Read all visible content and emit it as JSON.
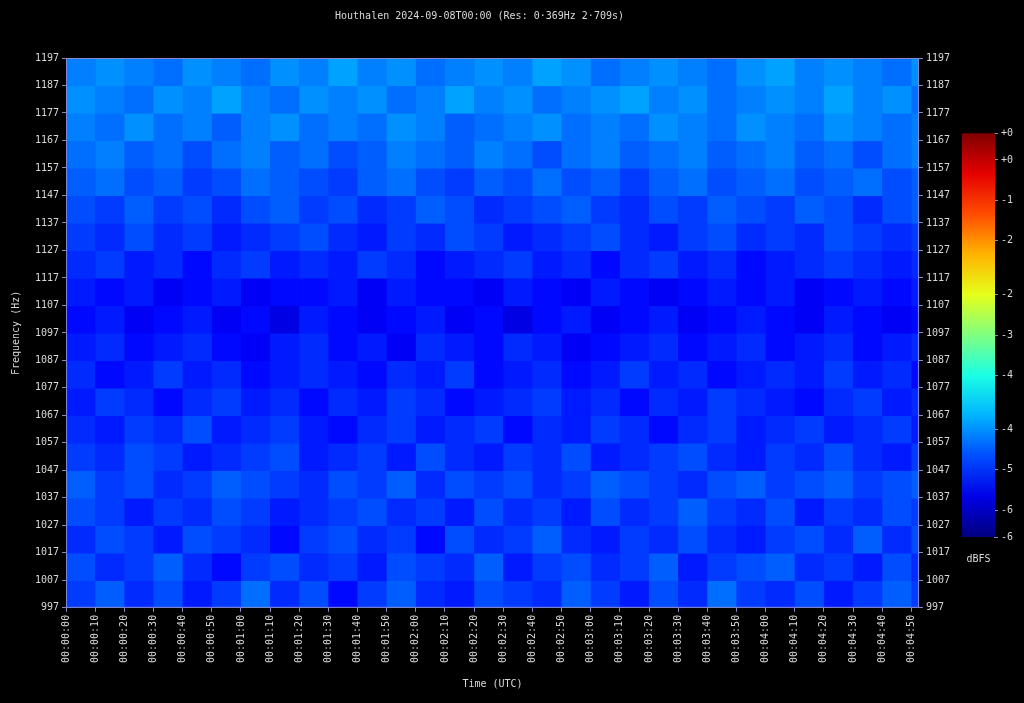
{
  "chart_data": {
    "type": "heatmap",
    "title": "Houthalen 2024-09-08T00:00 (Res: 0·369Hz 2·709s)",
    "xlabel": "Time (UTC)",
    "ylabel": "Frequency (Hz)",
    "grid": false,
    "xlim": [
      0,
      292.6
    ],
    "xticks": [
      {
        "value": 0,
        "label": "00:00:00"
      },
      {
        "value": 10,
        "label": "00:00:10"
      },
      {
        "value": 20,
        "label": "00:00:20"
      },
      {
        "value": 30,
        "label": "00:00:30"
      },
      {
        "value": 40,
        "label": "00:00:40"
      },
      {
        "value": 50,
        "label": "00:00:50"
      },
      {
        "value": 60,
        "label": "00:01:00"
      },
      {
        "value": 70,
        "label": "00:01:10"
      },
      {
        "value": 80,
        "label": "00:01:20"
      },
      {
        "value": 90,
        "label": "00:01:30"
      },
      {
        "value": 100,
        "label": "00:01:40"
      },
      {
        "value": 110,
        "label": "00:01:50"
      },
      {
        "value": 120,
        "label": "00:02:00"
      },
      {
        "value": 130,
        "label": "00:02:10"
      },
      {
        "value": 140,
        "label": "00:02:20"
      },
      {
        "value": 150,
        "label": "00:02:30"
      },
      {
        "value": 160,
        "label": "00:02:40"
      },
      {
        "value": 170,
        "label": "00:02:50"
      },
      {
        "value": 180,
        "label": "00:03:00"
      },
      {
        "value": 190,
        "label": "00:03:10"
      },
      {
        "value": 200,
        "label": "00:03:20"
      },
      {
        "value": 210,
        "label": "00:03:30"
      },
      {
        "value": 220,
        "label": "00:03:40"
      },
      {
        "value": 230,
        "label": "00:03:50"
      },
      {
        "value": 240,
        "label": "00:04:00"
      },
      {
        "value": 250,
        "label": "00:04:10"
      },
      {
        "value": 260,
        "label": "00:04:20"
      },
      {
        "value": 270,
        "label": "00:04:30"
      },
      {
        "value": 280,
        "label": "00:04:40"
      },
      {
        "value": 290,
        "label": "00:04:50"
      }
    ],
    "ylim": [
      997,
      1197
    ],
    "yticks": [
      997,
      1007,
      1017,
      1027,
      1037,
      1047,
      1057,
      1067,
      1077,
      1087,
      1097,
      1107,
      1117,
      1127,
      1137,
      1147,
      1157,
      1167,
      1177,
      1187,
      1197
    ],
    "y2lim": [
      997,
      1197
    ],
    "y2ticks": [
      997,
      1007,
      1017,
      1027,
      1037,
      1047,
      1057,
      1067,
      1077,
      1087,
      1097,
      1107,
      1117,
      1127,
      1137,
      1147,
      1157,
      1167,
      1177,
      1187,
      1197
    ],
    "x": [
      5,
      15,
      25,
      35,
      45,
      55,
      65,
      75,
      85,
      95,
      105,
      115,
      125,
      135,
      145,
      155,
      165,
      175,
      185,
      195,
      205,
      215,
      225,
      235,
      245,
      255,
      265,
      275,
      285,
      295
    ],
    "y": [
      1002,
      1012,
      1022,
      1032,
      1042,
      1052,
      1062,
      1072,
      1082,
      1092,
      1102,
      1112,
      1122,
      1132,
      1142,
      1152,
      1162,
      1172,
      1182,
      1192
    ],
    "cells": [
      [
        -4.9,
        -4.7,
        -5.0,
        -4.8,
        -5.1,
        -4.9,
        -4.6,
        -5.0,
        -4.8,
        -5.2,
        -4.9,
        -4.7,
        -5.0,
        -5.1,
        -4.8,
        -4.9,
        -5.0,
        -4.7,
        -4.9,
        -5.1,
        -4.8,
        -5.0,
        -4.6,
        -4.9,
        -5.0,
        -4.8,
        -5.1,
        -4.9,
        -4.7,
        -4.9
      ],
      [
        -4.8,
        -5.0,
        -4.9,
        -4.7,
        -5.0,
        -5.2,
        -4.9,
        -4.8,
        -5.0,
        -4.9,
        -5.1,
        -4.8,
        -4.9,
        -5.0,
        -4.7,
        -5.1,
        -4.9,
        -4.8,
        -5.0,
        -4.9,
        -4.7,
        -5.1,
        -4.9,
        -4.8,
        -4.7,
        -5.0,
        -4.9,
        -5.1,
        -4.8,
        -5.0
      ],
      [
        -5.0,
        -4.8,
        -4.9,
        -5.1,
        -4.8,
        -4.9,
        -5.0,
        -5.2,
        -4.9,
        -4.8,
        -5.0,
        -4.9,
        -5.2,
        -4.8,
        -5.0,
        -4.9,
        -4.7,
        -5.0,
        -5.1,
        -4.9,
        -5.0,
        -4.8,
        -5.0,
        -5.1,
        -4.9,
        -4.8,
        -5.0,
        -4.7,
        -5.0,
        -4.8
      ],
      [
        -4.8,
        -4.9,
        -5.1,
        -4.9,
        -5.0,
        -4.8,
        -4.9,
        -5.1,
        -5.0,
        -4.9,
        -4.8,
        -5.0,
        -4.9,
        -5.1,
        -4.8,
        -5.0,
        -4.9,
        -5.1,
        -4.8,
        -5.0,
        -4.9,
        -4.7,
        -4.9,
        -5.0,
        -4.8,
        -5.1,
        -4.9,
        -5.0,
        -4.8,
        -4.9
      ],
      [
        -4.7,
        -4.9,
        -4.8,
        -5.0,
        -4.9,
        -4.7,
        -4.8,
        -4.9,
        -5.0,
        -4.8,
        -4.9,
        -4.7,
        -5.0,
        -4.8,
        -4.9,
        -4.8,
        -5.0,
        -4.9,
        -4.7,
        -4.8,
        -4.9,
        -5.0,
        -4.8,
        -4.7,
        -4.9,
        -4.8,
        -4.7,
        -4.9,
        -4.8,
        -4.7
      ],
      [
        -4.9,
        -5.0,
        -4.8,
        -4.9,
        -5.1,
        -5.0,
        -4.9,
        -4.8,
        -5.1,
        -5.0,
        -4.9,
        -5.1,
        -4.8,
        -5.0,
        -5.1,
        -4.9,
        -5.0,
        -4.8,
        -5.1,
        -5.0,
        -4.9,
        -4.8,
        -5.0,
        -5.1,
        -4.9,
        -5.0,
        -4.8,
        -5.0,
        -5.1,
        -4.9
      ],
      [
        -5.0,
        -5.1,
        -4.9,
        -5.0,
        -4.8,
        -5.1,
        -5.0,
        -4.9,
        -5.1,
        -5.2,
        -5.0,
        -4.9,
        -5.1,
        -5.0,
        -4.9,
        -5.2,
        -5.0,
        -5.1,
        -4.9,
        -5.0,
        -5.2,
        -5.0,
        -4.9,
        -5.1,
        -5.0,
        -4.9,
        -5.1,
        -5.0,
        -4.9,
        -5.1
      ],
      [
        -5.1,
        -4.9,
        -5.0,
        -5.2,
        -5.0,
        -4.9,
        -5.1,
        -5.0,
        -5.2,
        -5.0,
        -5.1,
        -4.9,
        -5.0,
        -5.2,
        -5.1,
        -5.0,
        -4.9,
        -5.1,
        -5.0,
        -5.2,
        -5.0,
        -5.1,
        -4.9,
        -5.0,
        -5.1,
        -5.2,
        -5.0,
        -4.9,
        -5.1,
        -5.0
      ],
      [
        -5.0,
        -5.2,
        -5.1,
        -4.9,
        -5.1,
        -5.0,
        -5.2,
        -5.1,
        -5.0,
        -5.1,
        -5.2,
        -5.0,
        -5.1,
        -4.9,
        -5.2,
        -5.1,
        -5.0,
        -5.2,
        -5.1,
        -4.9,
        -5.1,
        -5.0,
        -5.2,
        -5.1,
        -5.0,
        -5.1,
        -4.9,
        -5.1,
        -5.0,
        -5.2
      ],
      [
        -5.1,
        -5.0,
        -5.2,
        -5.1,
        -5.0,
        -5.2,
        -5.3,
        -5.1,
        -5.0,
        -5.2,
        -5.1,
        -5.3,
        -5.0,
        -5.1,
        -5.2,
        -5.0,
        -5.1,
        -5.3,
        -5.2,
        -5.1,
        -5.0,
        -5.2,
        -5.1,
        -5.0,
        -5.2,
        -5.1,
        -5.0,
        -5.2,
        -5.1,
        -5.0
      ],
      [
        -5.2,
        -5.1,
        -5.3,
        -5.2,
        -5.1,
        -5.3,
        -5.2,
        -5.4,
        -5.1,
        -5.2,
        -5.3,
        -5.2,
        -5.1,
        -5.3,
        -5.2,
        -5.4,
        -5.2,
        -5.1,
        -5.3,
        -5.2,
        -5.1,
        -5.3,
        -5.2,
        -5.1,
        -5.2,
        -5.3,
        -5.1,
        -5.2,
        -5.3,
        -5.2
      ],
      [
        -5.1,
        -5.2,
        -5.1,
        -5.3,
        -5.2,
        -5.1,
        -5.3,
        -5.2,
        -5.2,
        -5.1,
        -5.3,
        -5.1,
        -5.2,
        -5.2,
        -5.3,
        -5.1,
        -5.2,
        -5.3,
        -5.1,
        -5.2,
        -5.3,
        -5.2,
        -5.1,
        -5.2,
        -5.1,
        -5.3,
        -5.2,
        -5.1,
        -5.2,
        -5.1
      ],
      [
        -5.0,
        -4.9,
        -5.1,
        -5.0,
        -5.2,
        -5.0,
        -4.9,
        -5.1,
        -5.0,
        -5.1,
        -4.9,
        -5.0,
        -5.2,
        -5.1,
        -5.0,
        -4.9,
        -5.1,
        -5.0,
        -5.2,
        -5.0,
        -4.9,
        -5.1,
        -5.0,
        -5.2,
        -5.1,
        -5.0,
        -4.9,
        -5.0,
        -5.1,
        -5.0
      ],
      [
        -4.9,
        -5.0,
        -4.8,
        -5.0,
        -4.9,
        -5.1,
        -5.0,
        -4.9,
        -4.8,
        -5.0,
        -5.1,
        -4.9,
        -5.0,
        -4.8,
        -4.9,
        -5.1,
        -5.0,
        -4.9,
        -4.8,
        -5.0,
        -5.1,
        -4.9,
        -4.8,
        -5.0,
        -4.9,
        -5.0,
        -4.8,
        -4.9,
        -5.0,
        -4.9
      ],
      [
        -4.8,
        -4.9,
        -4.7,
        -4.9,
        -4.8,
        -5.0,
        -4.8,
        -4.7,
        -4.9,
        -4.8,
        -5.0,
        -4.9,
        -4.7,
        -4.8,
        -5.0,
        -4.9,
        -4.8,
        -4.7,
        -4.9,
        -5.0,
        -4.8,
        -4.9,
        -4.7,
        -4.8,
        -4.9,
        -4.7,
        -4.8,
        -5.0,
        -4.8,
        -4.7
      ],
      [
        -4.7,
        -4.6,
        -4.8,
        -4.7,
        -4.9,
        -4.8,
        -4.6,
        -4.7,
        -4.8,
        -4.9,
        -4.7,
        -4.6,
        -4.8,
        -4.9,
        -4.7,
        -4.8,
        -4.6,
        -4.8,
        -4.7,
        -4.9,
        -4.7,
        -4.6,
        -4.8,
        -4.7,
        -4.6,
        -4.8,
        -4.7,
        -4.6,
        -4.8,
        -4.7
      ],
      [
        -4.6,
        -4.5,
        -4.7,
        -4.6,
        -4.8,
        -4.6,
        -4.5,
        -4.7,
        -4.6,
        -4.8,
        -4.7,
        -4.5,
        -4.6,
        -4.7,
        -4.5,
        -4.6,
        -4.8,
        -4.6,
        -4.5,
        -4.7,
        -4.6,
        -4.5,
        -4.7,
        -4.6,
        -4.5,
        -4.7,
        -4.6,
        -4.8,
        -4.6,
        -4.5
      ],
      [
        -4.5,
        -4.6,
        -4.4,
        -4.6,
        -4.5,
        -4.7,
        -4.5,
        -4.4,
        -4.6,
        -4.5,
        -4.6,
        -4.4,
        -4.5,
        -4.7,
        -4.6,
        -4.5,
        -4.4,
        -4.6,
        -4.5,
        -4.6,
        -4.4,
        -4.5,
        -4.6,
        -4.4,
        -4.5,
        -4.6,
        -4.4,
        -4.5,
        -4.6,
        -4.5
      ],
      [
        -4.4,
        -4.5,
        -4.6,
        -4.4,
        -4.5,
        -4.3,
        -4.5,
        -4.6,
        -4.4,
        -4.5,
        -4.4,
        -4.6,
        -4.5,
        -4.3,
        -4.5,
        -4.4,
        -4.6,
        -4.5,
        -4.4,
        -4.3,
        -4.5,
        -4.4,
        -4.6,
        -4.5,
        -4.4,
        -4.5,
        -4.3,
        -4.5,
        -4.4,
        -4.6
      ],
      [
        -4.5,
        -4.4,
        -4.5,
        -4.6,
        -4.4,
        -4.5,
        -4.6,
        -4.4,
        -4.5,
        -4.3,
        -4.5,
        -4.4,
        -4.6,
        -4.5,
        -4.4,
        -4.5,
        -4.3,
        -4.4,
        -4.6,
        -4.5,
        -4.4,
        -4.5,
        -4.6,
        -4.4,
        -4.3,
        -4.5,
        -4.4,
        -4.5,
        -4.6,
        -4.4
      ]
    ],
    "colorbar": {
      "label": "dBFS",
      "range": [
        -6,
        0
      ],
      "ticks": [
        {
          "value": 0,
          "label": "+0"
        },
        {
          "value": -0.4,
          "label": "+0"
        },
        {
          "value": -1,
          "label": "-1"
        },
        {
          "value": -1.6,
          "label": "-2"
        },
        {
          "value": -2.4,
          "label": "-2"
        },
        {
          "value": -3,
          "label": "-3"
        },
        {
          "value": -3.6,
          "label": "-4"
        },
        {
          "value": -4.4,
          "label": "-4"
        },
        {
          "value": -5,
          "label": "-5"
        },
        {
          "value": -5.6,
          "label": "-6"
        },
        {
          "value": -6,
          "label": "-6"
        }
      ]
    }
  }
}
